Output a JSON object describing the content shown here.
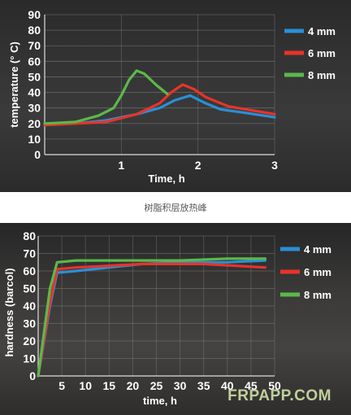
{
  "caption": "树脂积层放热峰",
  "watermark": "FRPAPP.COM",
  "chart_data": [
    {
      "type": "line",
      "xlabel": "Time, h",
      "ylabel": "temperature (° C)",
      "xlim": [
        0,
        3
      ],
      "ylim": [
        0,
        90
      ],
      "xticks": [
        1,
        2,
        3
      ],
      "yticks": [
        0,
        10,
        20,
        30,
        40,
        50,
        60,
        70,
        80,
        90
      ],
      "grid": true,
      "legend_position": "top-right",
      "series": [
        {
          "name": "4 mm",
          "color": "#2a8fd6",
          "x": [
            0,
            0.4,
            0.8,
            1.2,
            1.5,
            1.7,
            1.9,
            2.1,
            2.3,
            2.6,
            3.0
          ],
          "y": [
            19,
            20,
            22,
            26,
            30,
            35,
            38,
            33,
            29,
            27,
            24
          ]
        },
        {
          "name": "6 mm",
          "color": "#e8332a",
          "x": [
            0,
            0.4,
            0.8,
            1.2,
            1.5,
            1.65,
            1.8,
            1.95,
            2.1,
            2.4,
            3.0
          ],
          "y": [
            19,
            20,
            21,
            26,
            33,
            40,
            45,
            42,
            37,
            31,
            26
          ]
        },
        {
          "name": "8 mm",
          "color": "#5cb84a",
          "x": [
            0,
            0.4,
            0.7,
            0.9,
            1.0,
            1.1,
            1.2,
            1.3,
            1.45,
            1.6
          ],
          "y": [
            20,
            21,
            25,
            30,
            38,
            48,
            54,
            52,
            45,
            39
          ]
        }
      ]
    },
    {
      "type": "line",
      "xlabel": "time, h",
      "ylabel": "hardness (barcol)",
      "xlim": [
        0,
        50
      ],
      "ylim": [
        0,
        80
      ],
      "xticks": [
        5,
        10,
        15,
        20,
        25,
        30,
        35,
        40,
        45,
        50
      ],
      "yticks": [
        0,
        10,
        20,
        30,
        40,
        50,
        60,
        70,
        80
      ],
      "grid": true,
      "legend_position": "right",
      "series": [
        {
          "name": "4 mm",
          "color": "#2a8fd6",
          "x": [
            0,
            2.5,
            4,
            8,
            15,
            22,
            30,
            40,
            48
          ],
          "y": [
            0,
            40,
            59,
            60,
            62,
            64,
            65,
            65,
            66
          ]
        },
        {
          "name": "6 mm",
          "color": "#e8332a",
          "x": [
            0,
            2.5,
            4,
            8,
            15,
            22,
            25,
            35,
            48
          ],
          "y": [
            0,
            42,
            61,
            62,
            63,
            64,
            64,
            64,
            62
          ]
        },
        {
          "name": "8 mm",
          "color": "#5cb84a",
          "x": [
            0,
            2.5,
            4,
            8,
            15,
            22,
            30,
            40,
            48
          ],
          "y": [
            0,
            50,
            65,
            66,
            66,
            66,
            66,
            67,
            67
          ]
        }
      ]
    }
  ]
}
